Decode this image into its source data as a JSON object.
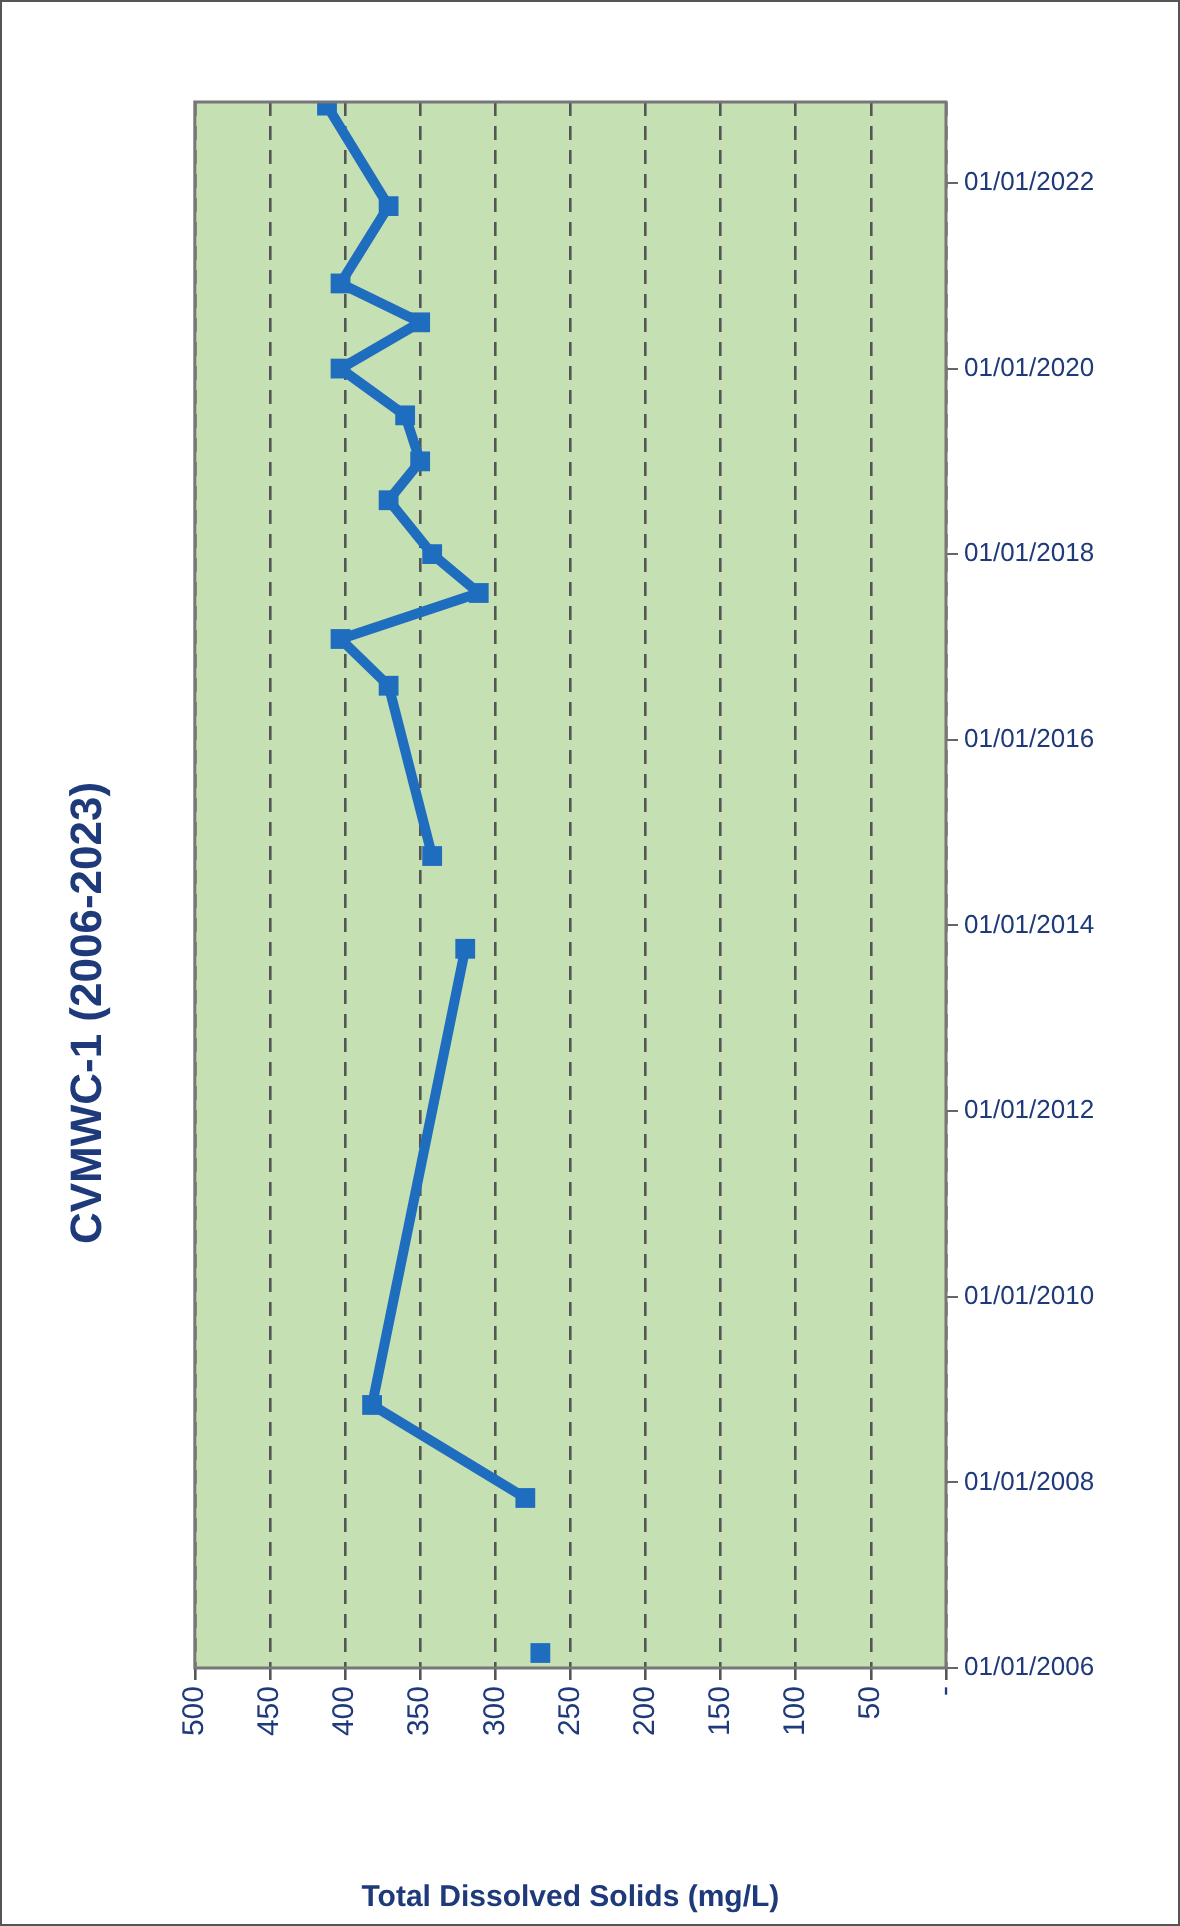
{
  "chart_data": {
    "type": "line",
    "orientation": "horizontal",
    "title": "CVMWC-1 (2006-2023)",
    "xlabel": "Total Dissolved Solids (mg/L)",
    "x": [
      "2006-03",
      "2007-01",
      "2007-11",
      "2008-11",
      "2013-10",
      "2014-04",
      "2014-10",
      "2016-08",
      "2017-02",
      "2017-08",
      "2018-01",
      "2018-08",
      "2019-01",
      "2019-07",
      "2020-01",
      "2020-07",
      "2020-12",
      "2021-10",
      "2022-11"
    ],
    "series": [
      {
        "color": "#1f6dbf",
        "values": [
          270,
          null,
          280,
          382,
          320,
          null,
          342,
          371,
          403,
          311,
          342,
          371,
          350,
          360,
          403,
          350,
          403,
          371,
          412
        ]
      }
    ],
    "ylim": [
      "2006-01-01",
      "2022-11-15"
    ],
    "yticks": [
      {
        "value": "2006-01-01",
        "label": "01/01/2006"
      },
      {
        "value": "2008-01-01",
        "label": "01/01/2008"
      },
      {
        "value": "2010-01-01",
        "label": "01/01/2010"
      },
      {
        "value": "2012-01-01",
        "label": "01/01/2012"
      },
      {
        "value": "2014-01-01",
        "label": "01/01/2014"
      },
      {
        "value": "2016-01-01",
        "label": "01/01/2016"
      },
      {
        "value": "2018-01-01",
        "label": "01/01/2018"
      },
      {
        "value": "2020-01-01",
        "label": "01/01/2020"
      },
      {
        "value": "2022-01-01",
        "label": "01/01/2022"
      }
    ],
    "xlim": [
      500,
      0
    ],
    "xticks": [
      500,
      450,
      400,
      350,
      300,
      250,
      200,
      150,
      100,
      50,
      {
        "value": 0,
        "label": "-"
      }
    ],
    "grid": "x",
    "legend": false,
    "marker": "square",
    "line_style": "solid"
  }
}
